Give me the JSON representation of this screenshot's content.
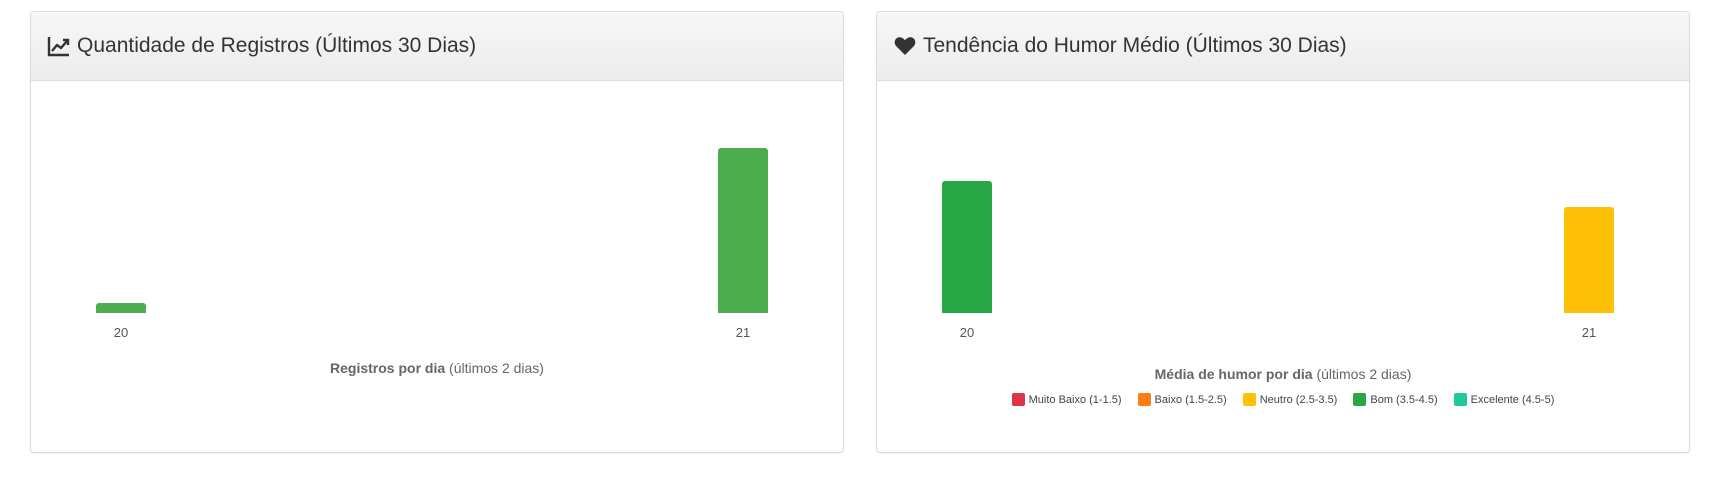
{
  "cards": {
    "left": {
      "title": "Quantidade de Registros (Últimos 30 Dias)",
      "icon": "line-chart-icon",
      "caption_bold": "Registros por dia",
      "caption_rest": "(últimos 2 dias)"
    },
    "right": {
      "title": "Tendência do Humor Médio (Últimos 30 Dias)",
      "icon": "heart-icon",
      "caption_bold": "Média de humor por dia",
      "caption_rest": "(últimos 2 dias)",
      "legend": [
        {
          "label": "Muito Baixo (1-1.5)",
          "color": "#dc3545"
        },
        {
          "label": "Baixo (1.5-2.5)",
          "color": "#fd7e14"
        },
        {
          "label": "Neutro (2.5-3.5)",
          "color": "#ffc107"
        },
        {
          "label": "Bom (3.5-4.5)",
          "color": "#28a745"
        },
        {
          "label": "Excelente (4.5-5)",
          "color": "#20c997"
        }
      ]
    }
  },
  "chart_data": [
    {
      "type": "bar",
      "categories": [
        "20",
        "21"
      ],
      "values": [
        1,
        17
      ],
      "ylim": [
        0,
        17
      ],
      "colors": [
        "#4cae4f",
        "#4cae4f"
      ],
      "grid": false
    },
    {
      "type": "bar",
      "categories": [
        "20",
        "21"
      ],
      "values": [
        4,
        3.2
      ],
      "ylim": [
        0,
        5
      ],
      "colors": [
        "#28a745",
        "#ffc107"
      ],
      "grid": false
    }
  ]
}
